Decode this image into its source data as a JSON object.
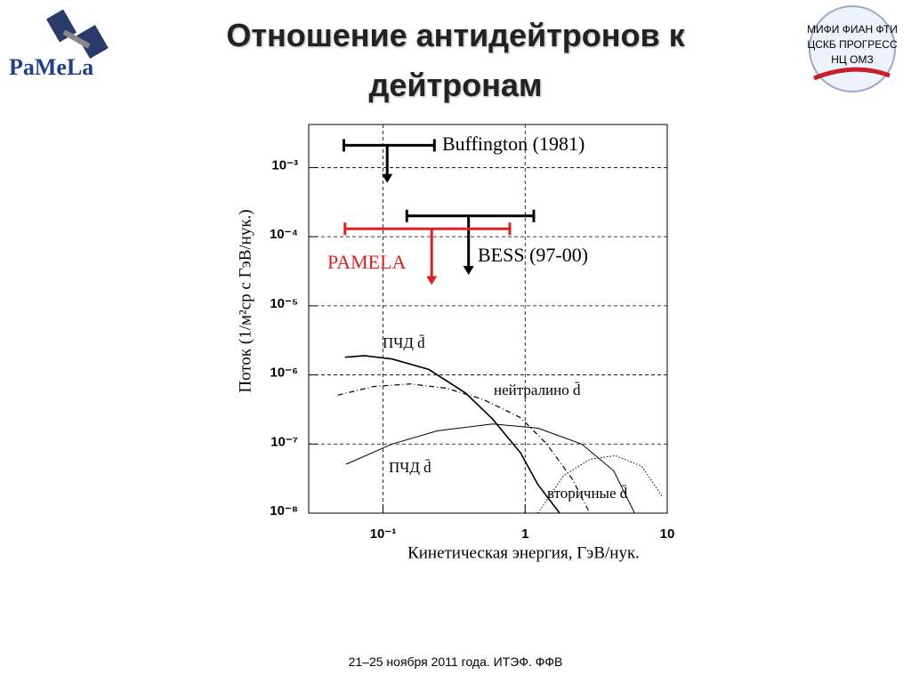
{
  "slide": {
    "logo_left": "PaMeLa",
    "logo_right": [
      "МИФИ  ФИАН  ФТИ",
      "ЦСКБ  ПРОГРЕСС",
      "НЦ  ОМЗ"
    ],
    "footer": "21–25 ноября 2011 года. ИТЭФ. ФФВ"
  },
  "chart_data": {
    "type": "line",
    "title": "Отношение антидейтронов к дейтронам",
    "x_label": "Кинетическая энергия, ГэВ/нук.",
    "y_label": "Поток (1/м²ср с ГэВ/нук.)",
    "log_x": true,
    "log_y": true,
    "grid": true,
    "xlim": [
      0.03,
      10
    ],
    "ylim": [
      1e-08,
      0.0042
    ],
    "xticks": [
      {
        "value": 0.1,
        "label": "10⁻¹"
      },
      1,
      10
    ],
    "yticks": [
      {
        "value": 1e-08,
        "label": "10⁻⁸"
      },
      {
        "value": 1e-07,
        "label": "10⁻⁷"
      },
      {
        "value": 1e-06,
        "label": "10⁻⁶"
      },
      {
        "value": 1e-05,
        "label": "10⁻⁵"
      },
      {
        "value": 0.0001,
        "label": "10⁻⁴"
      },
      {
        "value": 0.001,
        "label": "10⁻³"
      }
    ],
    "series": [
      {
        "name": "ПЧД d̄",
        "color": "#000000",
        "style": "solid",
        "x": [
          0.054,
          0.074,
          0.116,
          0.21,
          0.38,
          0.59,
          0.93,
          1.23,
          1.75
        ],
        "y": [
          1.8e-06,
          1.9e-06,
          1.7e-06,
          1.2e-06,
          5.5e-07,
          2.3e-07,
          7.4e-08,
          2.6e-08,
          1e-08
        ]
      },
      {
        "name": "нейтралино d̄",
        "color": "#000000",
        "style": "dashdot",
        "x": [
          0.048,
          0.086,
          0.156,
          0.28,
          0.51,
          0.93,
          1.42,
          2.15,
          2.85
        ],
        "y": [
          5.1e-07,
          6.8e-07,
          7.4e-07,
          6.4e-07,
          4.4e-07,
          2.4e-07,
          1e-07,
          3.1e-08,
          1e-08
        ]
      },
      {
        "name": "ПЧД d̄",
        "color": "#000000",
        "style": "thin",
        "x": [
          0.055,
          0.116,
          0.24,
          0.59,
          1.23,
          2.5,
          4.2,
          5.9
        ],
        "y": [
          5.1e-08,
          1e-07,
          1.55e-07,
          1.95e-07,
          1.7e-07,
          1e-07,
          4.1e-08,
          1e-08
        ]
      },
      {
        "name": "вторичные d̄",
        "color": "#000000",
        "style": "dotted",
        "x": [
          1.23,
          1.87,
          2.85,
          4.3,
          6.6,
          9.3
        ],
        "y": [
          1e-08,
          3.5e-08,
          6e-08,
          6.8e-08,
          4.8e-08,
          1.7e-08
        ]
      }
    ],
    "limits": [
      {
        "name": "Buffington (1981)",
        "color": "#000000",
        "x_range": [
          0.053,
          0.23
        ],
        "y": 0.0021,
        "arrow_x": 0.107,
        "arrow_to": 0.0006
      },
      {
        "name": "BESS (97-00)",
        "color": "#000000",
        "x_range": [
          0.147,
          1.15
        ],
        "y": 0.0002,
        "arrow_x": 0.4,
        "arrow_to": 2.8e-05
      },
      {
        "name": "PAMELA",
        "color": "#e02020",
        "x_range": [
          0.054,
          0.78
        ],
        "y": 0.00013,
        "arrow_x": 0.22,
        "arrow_to": 2e-05
      }
    ]
  }
}
